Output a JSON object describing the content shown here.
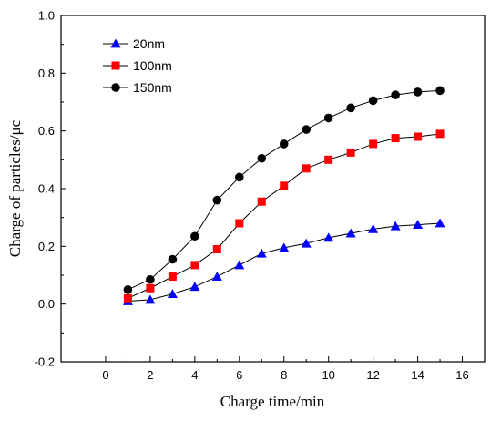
{
  "chart_data": {
    "type": "line",
    "xlabel": "Charge time/min",
    "ylabel": "Charge of particles/μc",
    "xlim": [
      -2,
      17
    ],
    "ylim": [
      -0.2,
      1.0
    ],
    "xticks": [
      0,
      2,
      4,
      6,
      8,
      10,
      12,
      14,
      16
    ],
    "yticks": [
      -0.2,
      0.0,
      0.2,
      0.4,
      0.6,
      0.8,
      1.0
    ],
    "xtick_labels": [
      "0",
      "2",
      "4",
      "6",
      "8",
      "10",
      "12",
      "14",
      "16"
    ],
    "ytick_labels": [
      "-0.2",
      "0.0",
      "0.2",
      "0.4",
      "0.6",
      "0.8",
      "1.0"
    ],
    "grid": false,
    "legend_position": "top-left",
    "x": [
      1,
      2,
      3,
      4,
      5,
      6,
      7,
      8,
      9,
      10,
      11,
      12,
      13,
      14,
      15
    ],
    "series": [
      {
        "name": "20nm",
        "marker": "triangle",
        "color": "#0000ff",
        "values": [
          0.01,
          0.015,
          0.035,
          0.06,
          0.095,
          0.135,
          0.175,
          0.195,
          0.21,
          0.23,
          0.245,
          0.26,
          0.27,
          0.275,
          0.28
        ]
      },
      {
        "name": "100nm",
        "marker": "square",
        "color": "#ff0000",
        "values": [
          0.02,
          0.055,
          0.095,
          0.135,
          0.19,
          0.28,
          0.355,
          0.41,
          0.47,
          0.5,
          0.525,
          0.555,
          0.575,
          0.58,
          0.59
        ]
      },
      {
        "name": "150nm",
        "marker": "circle",
        "color": "#000000",
        "values": [
          0.05,
          0.085,
          0.155,
          0.235,
          0.36,
          0.44,
          0.505,
          0.555,
          0.605,
          0.645,
          0.68,
          0.705,
          0.725,
          0.735,
          0.74
        ]
      }
    ]
  }
}
